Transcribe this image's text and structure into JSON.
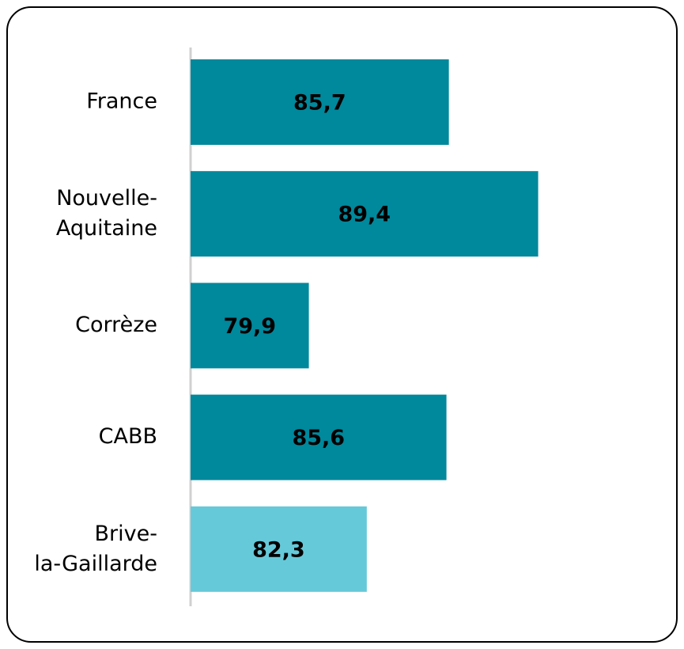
{
  "chart_data": {
    "type": "bar",
    "orientation": "horizontal",
    "categories": [
      "France",
      "Nouvelle-Aquitaine",
      "Corrèze",
      "CABB",
      "Brive-la-Gaillarde"
    ],
    "values": [
      85.7,
      89.4,
      79.9,
      85.6,
      82.3
    ],
    "value_labels": [
      "85,7",
      "89,4",
      "79,9",
      "85,6",
      "82,3"
    ],
    "colors": [
      "#00889c",
      "#00889c",
      "#00889c",
      "#00889c",
      "#66c9d9"
    ],
    "xlim": [
      75,
      94
    ]
  }
}
